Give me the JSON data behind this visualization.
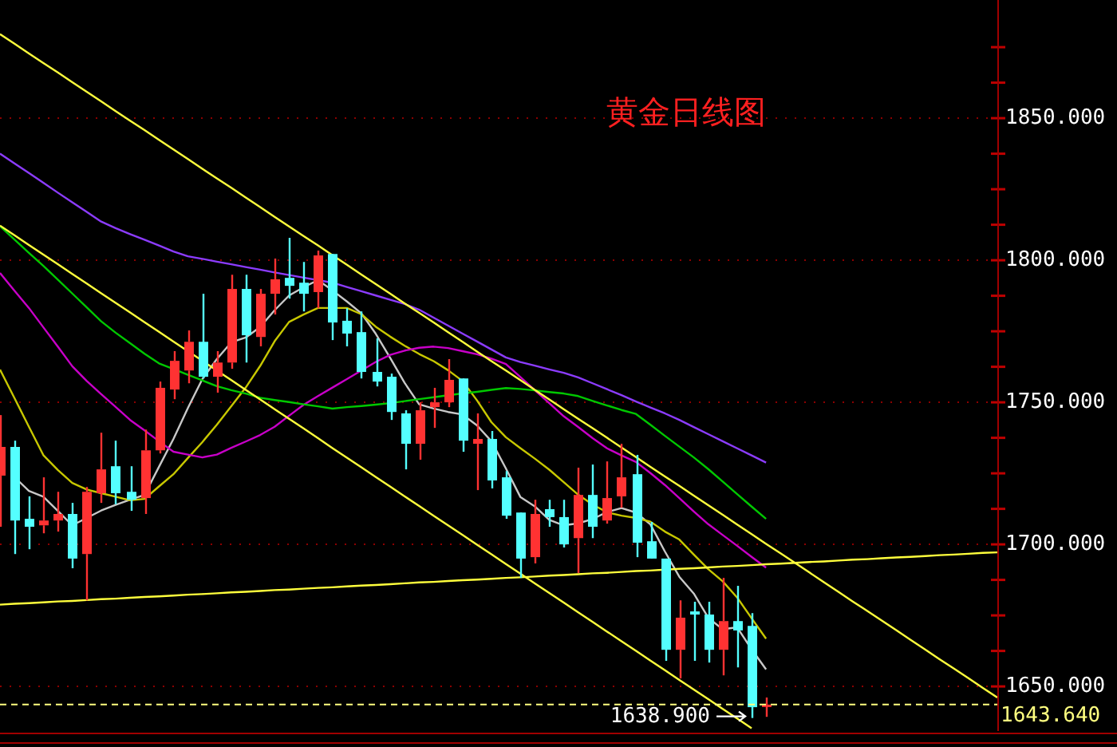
{
  "chart_data": {
    "type": "candlestick",
    "title": "黄金日线图",
    "categories": [
      null,
      null,
      null,
      null,
      null,
      null,
      null,
      null,
      null,
      null,
      null,
      null,
      null,
      null,
      null,
      null,
      null,
      null,
      null,
      null,
      null,
      null,
      null,
      null,
      null,
      null,
      null,
      null,
      null,
      null,
      null,
      null,
      null,
      null,
      null,
      null,
      null,
      null,
      null,
      null,
      null,
      null,
      null,
      null,
      null,
      null,
      null,
      null,
      null,
      null,
      null,
      null,
      null,
      null,
      null,
      null,
      null,
      null,
      null,
      null,
      null,
      null,
      null,
      null,
      null,
      null,
      null,
      null,
      null,
      null
    ],
    "ohlc": [
      [
        1724.2,
        1745.5,
        1706.2,
        1734.3
      ],
      [
        1734.3,
        1736.5,
        1696.6,
        1708.4
      ],
      [
        1709.0,
        1716.9,
        1698.3,
        1706.2
      ],
      [
        1706.7,
        1723.6,
        1703.9,
        1708.4
      ],
      [
        1708.4,
        1718.5,
        1704.5,
        1710.7
      ],
      [
        1710.7,
        1714.6,
        1691.6,
        1695.0
      ],
      [
        1696.6,
        1720.2,
        1680.3,
        1718.5
      ],
      [
        1718.0,
        1739.3,
        1714.6,
        1726.4
      ],
      [
        1727.5,
        1736.5,
        1714.1,
        1718.0
      ],
      [
        1718.5,
        1727.5,
        1711.8,
        1715.7
      ],
      [
        1716.3,
        1740.4,
        1710.7,
        1733.1
      ],
      [
        1733.1,
        1757.3,
        1732.0,
        1755.1
      ],
      [
        1754.5,
        1768.0,
        1751.1,
        1764.6
      ],
      [
        1761.2,
        1775.3,
        1756.7,
        1771.3
      ],
      [
        1771.3,
        1788.2,
        1758.4,
        1759.0
      ],
      [
        1759.0,
        1768.0,
        1753.4,
        1764.0
      ],
      [
        1764.0,
        1794.9,
        1761.8,
        1789.9
      ],
      [
        1789.9,
        1794.9,
        1764.0,
        1773.6
      ],
      [
        1773.0,
        1789.9,
        1769.7,
        1788.2
      ],
      [
        1788.2,
        1800.6,
        1780.9,
        1793.3
      ],
      [
        1793.8,
        1807.9,
        1786.5,
        1791.0
      ],
      [
        1792.1,
        1799.4,
        1782.0,
        1788.2
      ],
      [
        1788.8,
        1803.4,
        1783.1,
        1801.7
      ],
      [
        1802.2,
        1802.2,
        1771.9,
        1778.1
      ],
      [
        1778.7,
        1783.1,
        1769.7,
        1774.2
      ],
      [
        1774.7,
        1782.0,
        1758.4,
        1760.7
      ],
      [
        1760.7,
        1772.5,
        1755.6,
        1757.3
      ],
      [
        1759.0,
        1760.1,
        1743.8,
        1746.6
      ],
      [
        1746.1,
        1747.2,
        1726.4,
        1735.4
      ],
      [
        1735.4,
        1750.0,
        1729.8,
        1747.2
      ],
      [
        1748.3,
        1755.1,
        1741.0,
        1750.0
      ],
      [
        1750.0,
        1765.2,
        1748.3,
        1757.9
      ],
      [
        1758.4,
        1758.4,
        1732.6,
        1736.5
      ],
      [
        1735.4,
        1746.1,
        1719.1,
        1737.1
      ],
      [
        1737.1,
        1739.9,
        1719.7,
        1722.5
      ],
      [
        1723.6,
        1725.8,
        1709.0,
        1710.1
      ],
      [
        1711.2,
        1711.2,
        1688.2,
        1695.0
      ],
      [
        1695.5,
        1715.7,
        1693.3,
        1710.7
      ],
      [
        1712.4,
        1715.7,
        1706.2,
        1709.6
      ],
      [
        1709.6,
        1715.7,
        1698.9,
        1700.0
      ],
      [
        1702.2,
        1727.0,
        1689.9,
        1717.4
      ],
      [
        1717.4,
        1728.1,
        1702.2,
        1706.2
      ],
      [
        1708.4,
        1729.2,
        1707.3,
        1716.3
      ],
      [
        1716.9,
        1735.4,
        1712.9,
        1723.6
      ],
      [
        1724.7,
        1731.5,
        1695.5,
        1700.6
      ],
      [
        1701.1,
        1707.9,
        1695.0,
        1695.0
      ],
      [
        1695.0,
        1695.0,
        1659.0,
        1662.9
      ],
      [
        1662.9,
        1680.3,
        1652.8,
        1674.2
      ],
      [
        1676.4,
        1679.8,
        1659.0,
        1675.3
      ],
      [
        1675.3,
        1679.8,
        1658.4,
        1662.9
      ],
      [
        1662.9,
        1688.2,
        1653.9,
        1673.0
      ],
      [
        1673.0,
        1685.4,
        1656.7,
        1669.7
      ],
      [
        1671.3,
        1675.8,
        1638.9,
        1642.7
      ],
      [
        1643.0,
        1646.1,
        1639.3,
        1643.6
      ],
      null,
      null,
      null,
      null,
      null,
      null,
      null,
      null,
      null,
      null,
      null,
      null,
      null,
      null,
      null,
      null
    ],
    "colors": [
      "#ff3232",
      "#54ffff",
      "#54ffff",
      "#ff3232",
      "#ff3232",
      "#54ffff",
      "#ff3232",
      "#ff3232",
      "#54ffff",
      "#54ffff",
      "#ff3232",
      "#ff3232",
      "#ff3232",
      "#ff3232",
      "#54ffff",
      "#ff3232",
      "#ff3232",
      "#54ffff",
      "#ff3232",
      "#ff3232",
      "#54ffff",
      "#54ffff",
      "#ff3232",
      "#54ffff",
      "#54ffff",
      "#54ffff",
      "#54ffff",
      "#54ffff",
      "#54ffff",
      "#ff3232",
      "#ff3232",
      "#ff3232",
      "#54ffff",
      "#ff3232",
      "#54ffff",
      "#54ffff",
      "#54ffff",
      "#ff3232",
      "#54ffff",
      "#54ffff",
      "#ff3232",
      "#54ffff",
      "#ff3232",
      "#ff3232",
      "#54ffff",
      "#54ffff",
      "#54ffff",
      "#ff3232",
      "#54ffff",
      "#54ffff",
      "#ff3232",
      "#54ffff",
      "#54ffff",
      "#ff3232",
      null,
      null,
      null,
      null,
      null,
      null,
      null,
      null,
      null,
      null,
      null,
      null,
      null,
      null,
      null,
      null
    ],
    "series": [
      {
        "type": "line",
        "color": "#c8c8c8",
        "values": [
          null,
          1723.7,
          1718.8,
          1716.8,
          1711.8,
          1706.7,
          1709.3,
          1711.9,
          1713.9,
          1715.7,
          1717.4,
          1727.3,
          1737.1,
          1748.0,
          1758.2,
          1765.2,
          1771.1,
          1772.8,
          1776.5,
          1782.4,
          1787.6,
          1790.5,
          1793.0,
          1789.4,
          1785.5,
          1781.3,
          1774.1,
          1765.6,
          1756.8,
          1749.3,
          1747.8,
          1746.6,
          1745.7,
          1741.9,
          1736.3,
          1726.7,
          1716.7,
          1713.4,
          1708.6,
          1706.7,
          1707.4,
          1708.9,
          1711.4,
          1712.8,
          1711.2,
          1707.0,
          1697.5,
          1688.6,
          1682.7,
          1674.2,
          1670.1,
          1670.8,
          1663.1,
          1656.0,
          null,
          null,
          null,
          null,
          null,
          null,
          null,
          null,
          null,
          null,
          null,
          null,
          null,
          null,
          null,
          null
        ]
      },
      {
        "type": "line",
        "color": "#c8c800",
        "values": [
          1761.5,
          1751.5,
          1741.4,
          1731.4,
          1726.2,
          1721.6,
          1719.3,
          1718.0,
          1716.8,
          1715.5,
          1716.0,
          1720.4,
          1724.7,
          1730.4,
          1736.0,
          1742.1,
          1748.6,
          1755.2,
          1762.8,
          1771.5,
          1778.3,
          1780.9,
          1783.2,
          1783.2,
          1783.2,
          1781.0,
          1776.6,
          1773.1,
          1769.9,
          1767.0,
          1764.5,
          1761.3,
          1757.5,
          1750.7,
          1743.0,
          1737.7,
          1733.9,
          1730.2,
          1726.3,
          1721.9,
          1717.5,
          1714.0,
          1711.3,
          1710.1,
          1709.3,
          1708.0,
          1704.5,
          1701.7,
          1696.4,
          1691.3,
          1687.0,
          1681.3,
          1674.0,
          1666.8,
          null,
          null,
          null,
          null,
          null,
          null,
          null,
          null,
          null,
          null,
          null,
          null,
          null,
          null,
          null,
          null
        ]
      },
      {
        "type": "line",
        "color": "#c800c8",
        "values": [
          1795.5,
          1789.3,
          1783.2,
          1776.4,
          1769.6,
          1762.7,
          1757.5,
          1752.9,
          1748.4,
          1743.8,
          1740.1,
          1736.3,
          1732.6,
          1731.6,
          1730.6,
          1731.6,
          1734.0,
          1736.2,
          1738.5,
          1741.4,
          1745.3,
          1749.1,
          1752.2,
          1755.2,
          1758.2,
          1761.2,
          1764.2,
          1766.7,
          1768.2,
          1769.2,
          1769.6,
          1769.1,
          1768.0,
          1766.9,
          1765.4,
          1763.5,
          1758.9,
          1754.3,
          1749.7,
          1745.1,
          1741.3,
          1737.4,
          1733.8,
          1731.3,
          1729.0,
          1725.1,
          1720.9,
          1716.3,
          1711.6,
          1707.1,
          1703.3,
          1699.5,
          1695.6,
          1691.8,
          null,
          null,
          null,
          null,
          null,
          null,
          null,
          null,
          null,
          null,
          null,
          null,
          null,
          null,
          null,
          null
        ]
      },
      {
        "type": "line",
        "color": "#00c800",
        "values": [
          1812.0,
          1807.3,
          1802.6,
          1798.0,
          1793.2,
          1788.3,
          1783.4,
          1778.5,
          1774.5,
          1770.8,
          1767.1,
          1763.7,
          1761.7,
          1759.7,
          1757.7,
          1755.7,
          1754.3,
          1753.1,
          1751.6,
          1750.8,
          1750.1,
          1749.3,
          1748.6,
          1747.8,
          1748.3,
          1748.7,
          1749.2,
          1749.7,
          1750.4,
          1751.1,
          1751.8,
          1752.5,
          1753.1,
          1753.7,
          1754.4,
          1755.0,
          1754.7,
          1754.2,
          1753.6,
          1753.1,
          1752.2,
          1750.5,
          1748.9,
          1747.3,
          1745.9,
          1742.1,
          1738.2,
          1734.4,
          1730.6,
          1726.5,
          1722.1,
          1717.7,
          1713.3,
          1709.0,
          null,
          null,
          null,
          null,
          null,
          null,
          null,
          null,
          null,
          null,
          null,
          null,
          null,
          null,
          null,
          null
        ]
      },
      {
        "type": "line",
        "color": "#8c3cff",
        "values": [
          1837.5,
          1834.1,
          1830.7,
          1827.3,
          1823.8,
          1820.4,
          1817.0,
          1813.6,
          1811.3,
          1809.2,
          1807.2,
          1805.2,
          1803.1,
          1801.4,
          1800.5,
          1799.5,
          1798.6,
          1797.6,
          1796.7,
          1795.7,
          1794.8,
          1793.9,
          1793.0,
          1792.1,
          1790.6,
          1789.1,
          1787.6,
          1786.1,
          1784.6,
          1782.6,
          1779.8,
          1777.0,
          1774.2,
          1771.4,
          1768.6,
          1765.8,
          1764.2,
          1762.9,
          1761.6,
          1760.4,
          1758.8,
          1756.7,
          1754.6,
          1752.5,
          1750.3,
          1748.2,
          1746.1,
          1743.8,
          1741.3,
          1738.8,
          1736.3,
          1733.8,
          1731.3,
          1728.8,
          null,
          null,
          null,
          null,
          null,
          null,
          null,
          null,
          null,
          null,
          null,
          null,
          null,
          null,
          null,
          null
        ]
      },
      {
        "type": "line",
        "color": "#ffff3c",
        "values": [
          1879.6,
          1876.2,
          1872.8,
          1869.4,
          1866.1,
          1862.7,
          1859.3,
          1855.9,
          1852.5,
          1849.1,
          1845.8,
          1842.4,
          1839.0,
          1835.6,
          1832.2,
          1828.8,
          1825.5,
          1822.1,
          1818.7,
          1815.3,
          1811.9,
          1808.5,
          1805.2,
          1801.8,
          1798.4,
          1795.0,
          1791.6,
          1788.2,
          1784.8,
          1781.5,
          1778.1,
          1774.7,
          1771.3,
          1767.9,
          1764.5,
          1761.2,
          1757.8,
          1754.4,
          1751.0,
          1747.6,
          1744.2,
          1740.9,
          1737.5,
          1734.1,
          1730.7,
          1727.3,
          1723.9,
          1720.6,
          1717.2,
          1713.8,
          1710.4,
          1707.0,
          1703.6,
          1700.2,
          1696.9,
          1693.5,
          1690.1,
          1686.7,
          1683.3,
          1679.9,
          1676.6,
          1673.2,
          1669.8,
          1666.4,
          1663.0,
          1659.6,
          1656.3,
          1652.9,
          1649.5,
          1646.1
        ]
      },
      {
        "type": "line",
        "color": "#ffff3c",
        "values": [
          1812.2,
          1808.8,
          1805.4,
          1802.0,
          1798.6,
          1795.2,
          1791.8,
          1788.4,
          1785.0,
          1781.6,
          1778.2,
          1774.8,
          1771.4,
          1768.0,
          1764.6,
          1761.2,
          1757.8,
          1754.4,
          1751.0,
          1747.6,
          1744.2,
          1740.8,
          1737.4,
          1733.9,
          1730.5,
          1727.1,
          1723.7,
          1720.3,
          1716.9,
          1713.5,
          1710.1,
          1706.7,
          1703.3,
          1699.9,
          1696.5,
          1693.1,
          1689.7,
          1686.3,
          1682.9,
          1679.5,
          1676.1,
          1672.7,
          1669.3,
          1665.9,
          1662.5,
          1659.1,
          1655.7,
          1652.3,
          1648.9,
          1645.5,
          1642.1,
          1638.7,
          1635.3,
          null,
          null,
          null,
          null,
          null,
          null,
          null,
          null,
          null,
          null,
          null,
          null,
          null,
          null,
          null,
          null,
          null
        ]
      },
      {
        "type": "line",
        "color": "#ffff3c",
        "values": [
          1678.8,
          1679.1,
          1679.3,
          1679.6,
          1679.9,
          1680.1,
          1680.4,
          1680.7,
          1680.9,
          1681.2,
          1681.5,
          1681.7,
          1682.0,
          1682.3,
          1682.5,
          1682.8,
          1683.1,
          1683.3,
          1683.6,
          1683.9,
          1684.1,
          1684.4,
          1684.7,
          1684.9,
          1685.2,
          1685.5,
          1685.7,
          1686.0,
          1686.3,
          1686.6,
          1686.8,
          1687.1,
          1687.4,
          1687.6,
          1687.9,
          1688.2,
          1688.4,
          1688.7,
          1689.0,
          1689.2,
          1689.5,
          1689.8,
          1690.0,
          1690.3,
          1690.6,
          1690.8,
          1691.1,
          1691.4,
          1691.6,
          1691.9,
          1692.2,
          1692.4,
          1692.7,
          1693.0,
          1693.2,
          1693.5,
          1693.8,
          1694.0,
          1694.3,
          1694.6,
          1694.8,
          1695.1,
          1695.4,
          1695.6,
          1695.9,
          1696.2,
          1696.4,
          1696.7,
          1697.0,
          1697.2
        ]
      }
    ],
    "ylim": [
      1634.3,
      1891.6
    ],
    "yticks": [
      {
        "value": 1650,
        "label": "1650.000"
      },
      {
        "value": 1662.5,
        "label": null
      },
      {
        "value": 1675,
        "label": null
      },
      {
        "value": 1687.5,
        "label": null
      },
      {
        "value": 1700,
        "label": "1700.000"
      },
      {
        "value": 1712.5,
        "label": null
      },
      {
        "value": 1725,
        "label": null
      },
      {
        "value": 1737.5,
        "label": null
      },
      {
        "value": 1750,
        "label": "1750.000"
      },
      {
        "value": 1762.5,
        "label": null
      },
      {
        "value": 1775,
        "label": null
      },
      {
        "value": 1787.5,
        "label": null
      },
      {
        "value": 1800,
        "label": "1800.000"
      },
      {
        "value": 1812.5,
        "label": null
      },
      {
        "value": 1825,
        "label": null
      },
      {
        "value": 1837.5,
        "label": null
      },
      {
        "value": 1850,
        "label": "1850.000"
      },
      {
        "value": 1862.5,
        "label": null
      },
      {
        "value": 1875,
        "label": null
      }
    ],
    "tick_labels": "y",
    "grid": "y",
    "ref_lines": [
      {
        "axis": "y",
        "value": 1643.64,
        "label": "1643.640",
        "color": "#ffff80",
        "line_style": "dashed"
      }
    ],
    "annotations": [
      "1638.900"
    ]
  }
}
